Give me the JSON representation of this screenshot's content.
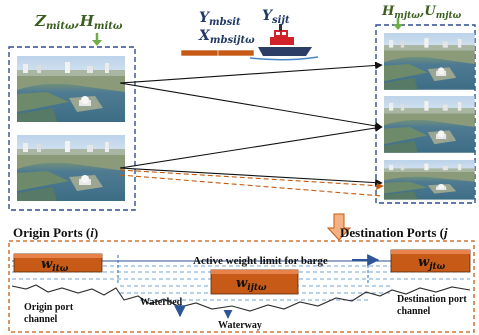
{
  "labels": {
    "origin_vars_main": "Z",
    "origin_vars_sub1": "mitω",
    "origin_vars_comma": ",",
    "origin_vars_main2": "H",
    "origin_vars_sub2": "mitω",
    "y_main": "Y",
    "y_sub": "mbsit",
    "x_main": "X",
    "x_sub": "mbsijtω",
    "ys_main": "Y",
    "ys_sub": "sijt",
    "dest_vars_main": "H",
    "dest_vars_sub1": "mjtω",
    "dest_vars_comma": ",",
    "dest_vars_main2": "U",
    "dest_vars_sub2": "mjtω",
    "origin_ports": "Origin Ports (",
    "origin_ports_i": "i",
    "origin_ports_close": ")",
    "destination_ports": "Destination Ports (",
    "destination_ports_j": "j",
    "active_weight": "Active weight limit for barge",
    "w_origin_main": "w",
    "w_origin_sub": "itω",
    "w_mid_main": "w",
    "w_mid_sub": "ijtω",
    "w_dest_main": "w",
    "w_dest_sub": "jtω",
    "origin_channel_1": "Origin port",
    "origin_channel_2": "channel",
    "waterbed": "Waterbed",
    "waterway": "Waterway",
    "dest_channel_1": "Destination port",
    "dest_channel_2": "channel"
  },
  "colors": {
    "text_green": "#3b5e1e",
    "text_blue": "#1f3864",
    "frame_blue": "#2f4f8f",
    "orange": "#c55a11",
    "orange_fill": "#c65a16",
    "orange_light": "#f4b183",
    "dashed_orange": "#c55a11",
    "arrow_green": "#70ad47"
  }
}
